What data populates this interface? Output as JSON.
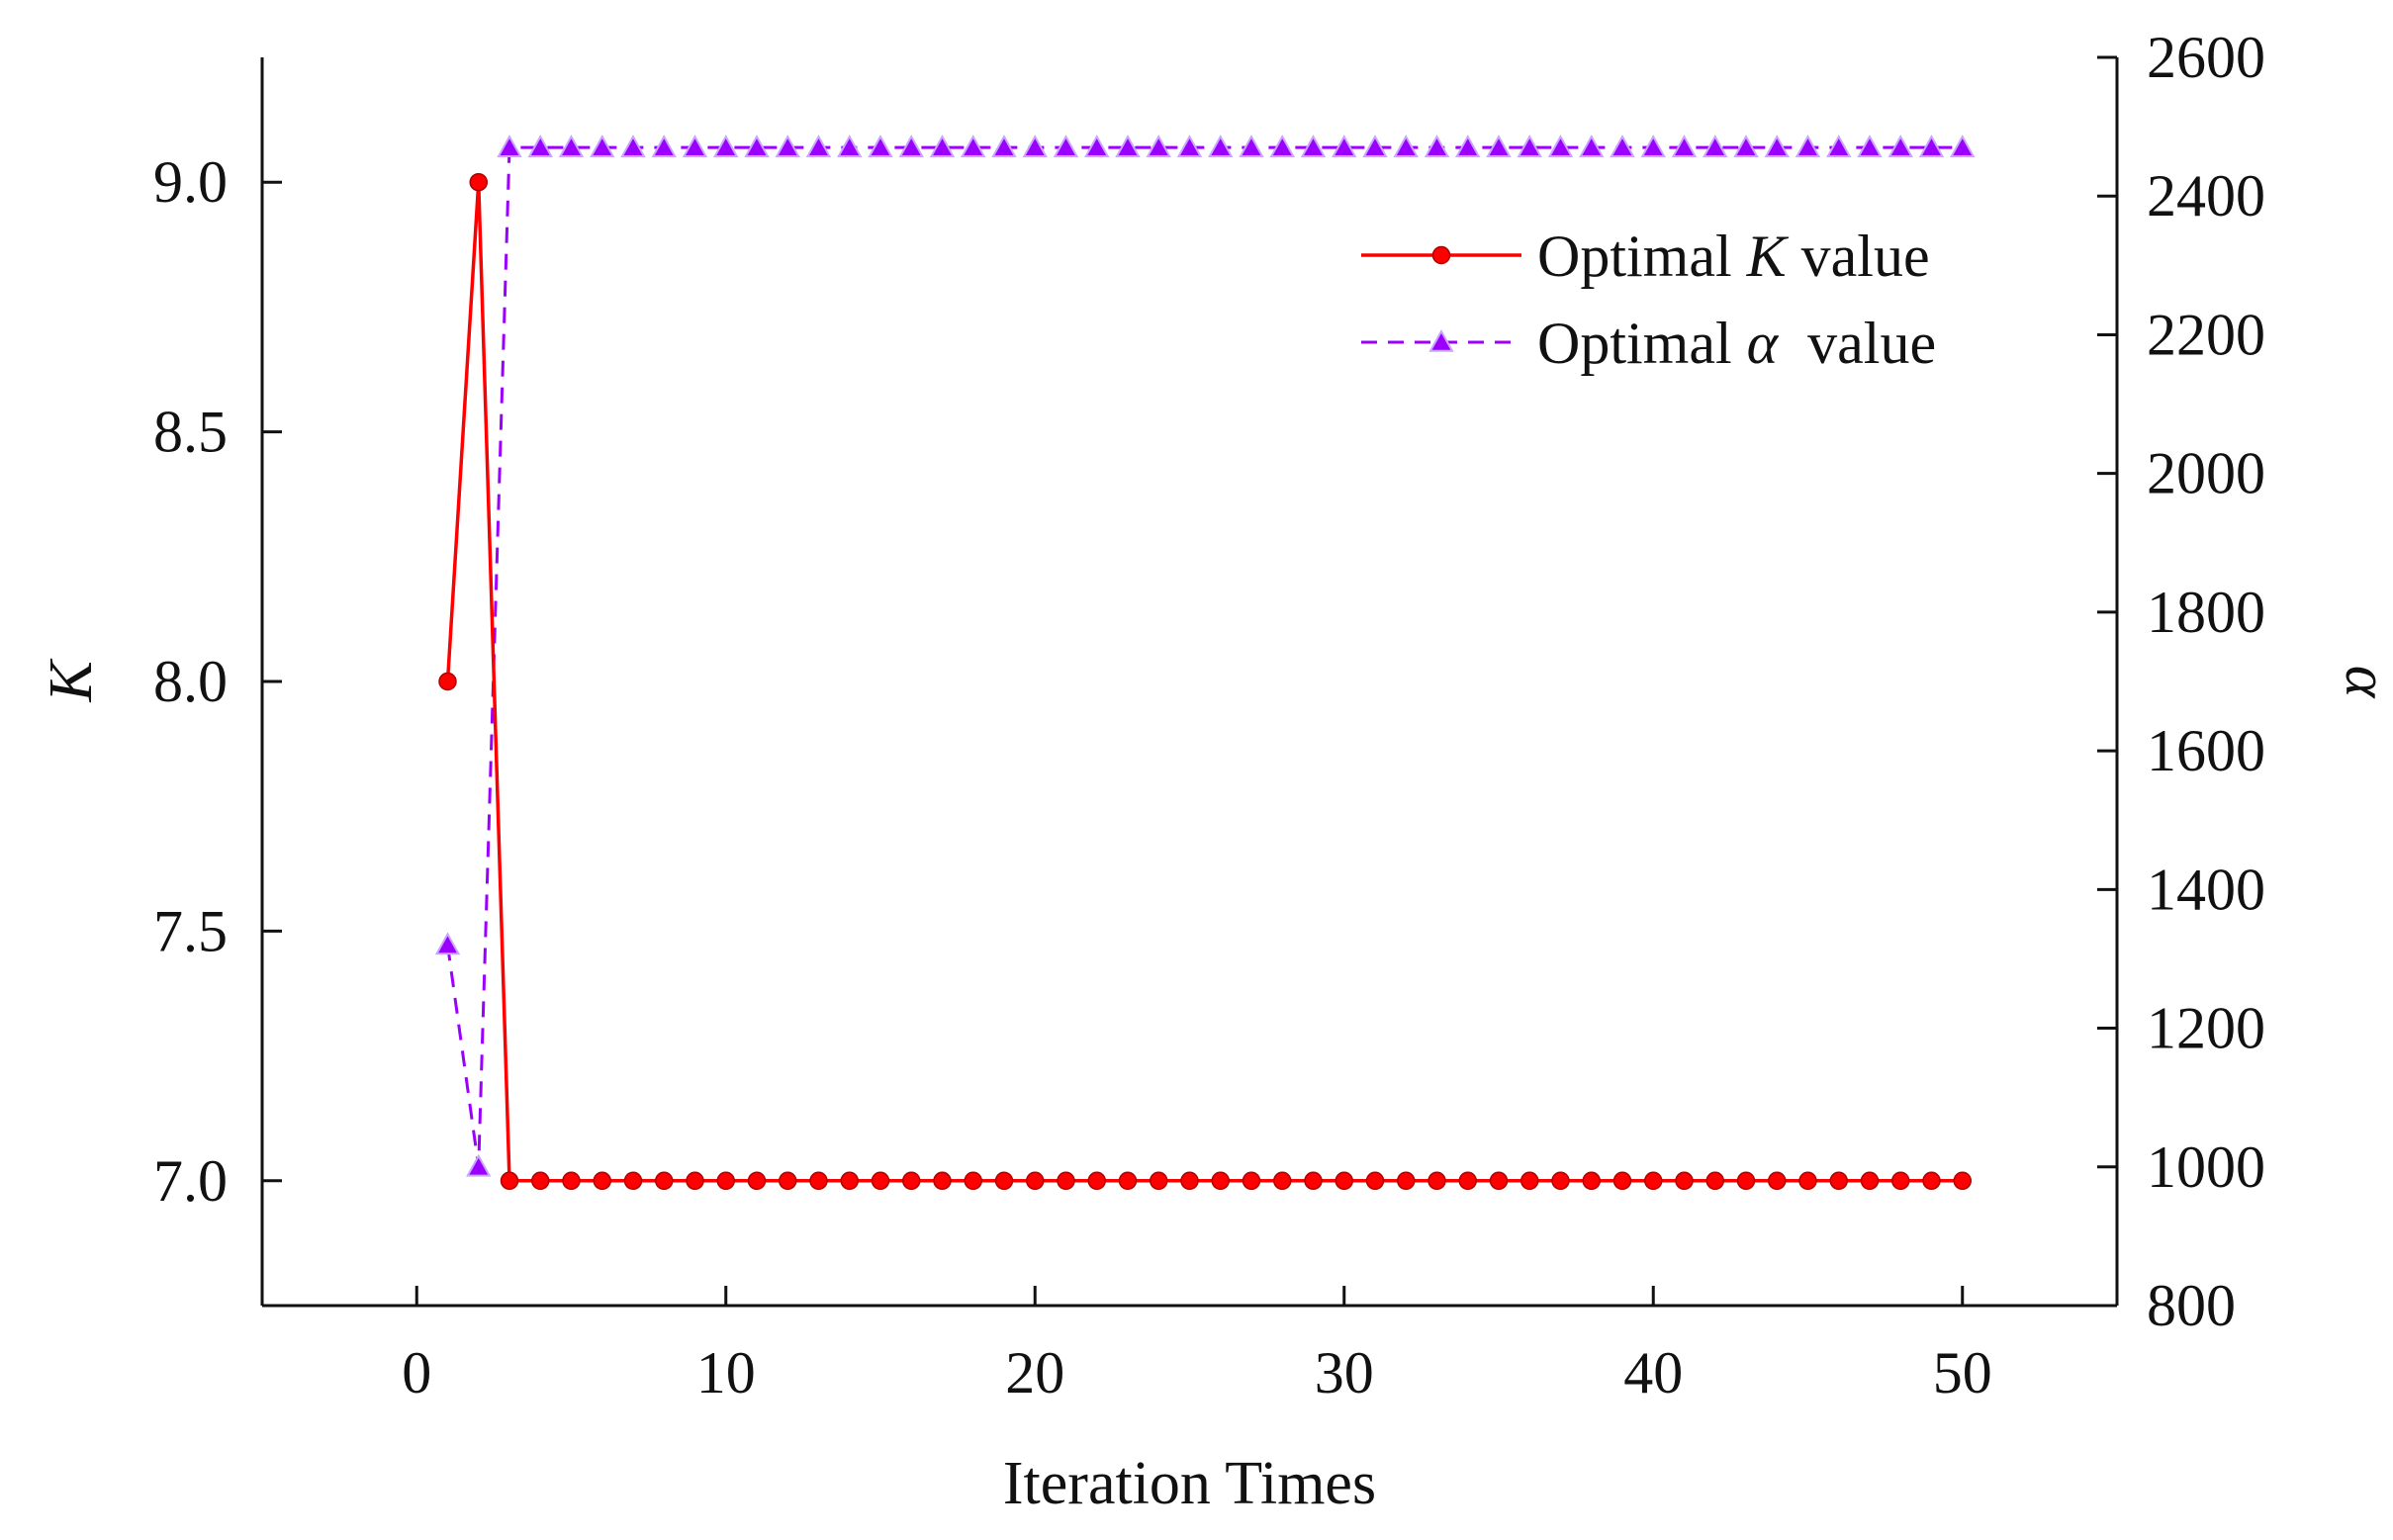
{
  "chart_data": {
    "type": "line",
    "xlabel": "Iteration Times",
    "ylabel_left": "K",
    "ylabel_right": "α",
    "xlim": [
      -5,
      55
    ],
    "ylim_left": [
      6.75,
      9.25
    ],
    "ylim_right": [
      800,
      2600
    ],
    "x_ticks": [
      0,
      10,
      20,
      30,
      40,
      50
    ],
    "x_tick_labels": [
      "0",
      "10",
      "20",
      "30",
      "40",
      "50"
    ],
    "y_left_ticks": [
      7.0,
      7.5,
      8.0,
      8.5,
      9.0
    ],
    "y_left_tick_labels": [
      "7.0",
      "7.5",
      "8.0",
      "8.5",
      "9.0"
    ],
    "y_right_ticks": [
      800,
      1000,
      1200,
      1400,
      1600,
      1800,
      2000,
      2200,
      2400,
      2600
    ],
    "y_right_tick_labels": [
      "800",
      "1000",
      "1200",
      "1400",
      "1600",
      "1800",
      "2000",
      "2200",
      "2400",
      "2600"
    ],
    "grid": false,
    "legend_position": "top-right",
    "series": [
      {
        "name": "Optimal K value",
        "legend_prefix": "Optimal ",
        "legend_symbol": "K",
        "legend_suffix": " value",
        "axis": "left",
        "color": "#ff0000",
        "line_style": "solid",
        "marker": "circle",
        "x": [
          1,
          2,
          3,
          4,
          5,
          6,
          7,
          8,
          9,
          10,
          11,
          12,
          13,
          14,
          15,
          16,
          17,
          18,
          19,
          20,
          21,
          22,
          23,
          24,
          25,
          26,
          27,
          28,
          29,
          30,
          31,
          32,
          33,
          34,
          35,
          36,
          37,
          38,
          39,
          40,
          41,
          42,
          43,
          44,
          45,
          46,
          47,
          48,
          49,
          50
        ],
        "values": [
          8,
          9,
          7,
          7,
          7,
          7,
          7,
          7,
          7,
          7,
          7,
          7,
          7,
          7,
          7,
          7,
          7,
          7,
          7,
          7,
          7,
          7,
          7,
          7,
          7,
          7,
          7,
          7,
          7,
          7,
          7,
          7,
          7,
          7,
          7,
          7,
          7,
          7,
          7,
          7,
          7,
          7,
          7,
          7,
          7,
          7,
          7,
          7,
          7,
          7
        ]
      },
      {
        "name": "Optimal α value",
        "legend_prefix": "Optimal ",
        "legend_symbol": "α",
        "legend_suffix": "  value",
        "axis": "right",
        "color": "#9b00ff",
        "line_style": "dashed",
        "marker": "triangle",
        "x": [
          1,
          2,
          3,
          4,
          5,
          6,
          7,
          8,
          9,
          10,
          11,
          12,
          13,
          14,
          15,
          16,
          17,
          18,
          19,
          20,
          21,
          22,
          23,
          24,
          25,
          26,
          27,
          28,
          29,
          30,
          31,
          32,
          33,
          34,
          35,
          36,
          37,
          38,
          39,
          40,
          41,
          42,
          43,
          44,
          45,
          46,
          47,
          48,
          49,
          50
        ],
        "values": [
          1320,
          1000,
          2470,
          2470,
          2470,
          2470,
          2470,
          2470,
          2470,
          2470,
          2470,
          2470,
          2470,
          2470,
          2470,
          2470,
          2470,
          2470,
          2470,
          2470,
          2470,
          2470,
          2470,
          2470,
          2470,
          2470,
          2470,
          2470,
          2470,
          2470,
          2470,
          2470,
          2470,
          2470,
          2470,
          2470,
          2470,
          2470,
          2470,
          2470,
          2470,
          2470,
          2470,
          2470,
          2470,
          2470,
          2470,
          2470,
          2470,
          2470
        ]
      }
    ]
  }
}
